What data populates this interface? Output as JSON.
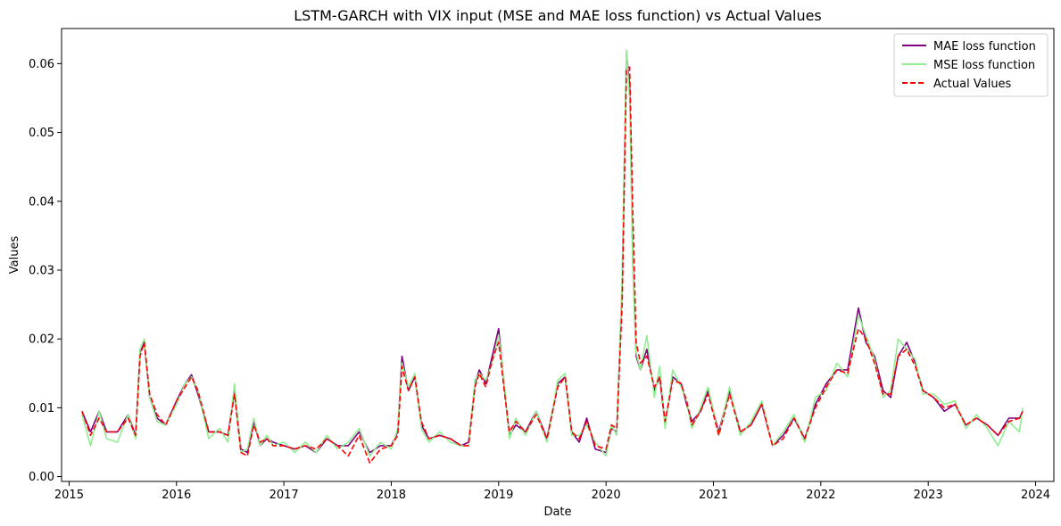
{
  "chart_data": {
    "type": "line",
    "title": "LSTM-GARCH with VIX input (MSE and MAE loss function) vs Actual Values",
    "xlabel": "Date",
    "ylabel": "Values",
    "xlim": [
      2014.93,
      2024.17
    ],
    "ylim": [
      -0.0007,
      0.0651
    ],
    "x_ticks": [
      2015,
      2016,
      2017,
      2018,
      2019,
      2020,
      2021,
      2022,
      2023,
      2024
    ],
    "x_tick_labels": [
      "2015",
      "2016",
      "2017",
      "2018",
      "2019",
      "2020",
      "2021",
      "2022",
      "2023",
      "2024"
    ],
    "y_ticks": [
      0.0,
      0.01,
      0.02,
      0.03,
      0.04,
      0.05,
      0.06
    ],
    "y_tick_labels": [
      "0.00",
      "0.01",
      "0.02",
      "0.03",
      "0.04",
      "0.05",
      "0.06"
    ],
    "grid": false,
    "legend_position": "top-right",
    "series": [
      {
        "name": "MAE loss function",
        "color": "#800080",
        "style": "solid",
        "x": [
          2015.12,
          2015.2,
          2015.28,
          2015.35,
          2015.45,
          2015.55,
          2015.62,
          2015.66,
          2015.7,
          2015.75,
          2015.82,
          2015.9,
          2016.0,
          2016.08,
          2016.14,
          2016.2,
          2016.3,
          2016.4,
          2016.48,
          2016.54,
          2016.6,
          2016.66,
          2016.72,
          2016.78,
          2016.84,
          2016.9,
          2017.0,
          2017.1,
          2017.2,
          2017.3,
          2017.4,
          2017.5,
          2017.6,
          2017.7,
          2017.8,
          2017.9,
          2018.0,
          2018.06,
          2018.1,
          2018.16,
          2018.22,
          2018.28,
          2018.35,
          2018.45,
          2018.55,
          2018.65,
          2018.72,
          2018.78,
          2018.82,
          2018.88,
          2018.94,
          2019.0,
          2019.06,
          2019.1,
          2019.16,
          2019.25,
          2019.35,
          2019.45,
          2019.55,
          2019.62,
          2019.68,
          2019.75,
          2019.82,
          2019.9,
          2020.0,
          2020.05,
          2020.1,
          2020.15,
          2020.19,
          2020.22,
          2020.25,
          2020.28,
          2020.32,
          2020.38,
          2020.45,
          2020.5,
          2020.55,
          2020.62,
          2020.7,
          2020.75,
          2020.8,
          2020.88,
          2020.95,
          2021.05,
          2021.15,
          2021.25,
          2021.35,
          2021.45,
          2021.55,
          2021.65,
          2021.75,
          2021.85,
          2021.95,
          2022.05,
          2022.15,
          2022.25,
          2022.35,
          2022.42,
          2022.5,
          2022.58,
          2022.65,
          2022.72,
          2022.8,
          2022.88,
          2022.95,
          2023.05,
          2023.15,
          2023.25,
          2023.35,
          2023.45,
          2023.55,
          2023.65,
          2023.75,
          2023.85,
          2023.88
        ],
        "y": [
          0.0095,
          0.0065,
          0.0095,
          0.0065,
          0.0065,
          0.009,
          0.006,
          0.018,
          0.0195,
          0.0115,
          0.0085,
          0.0075,
          0.011,
          0.0135,
          0.0148,
          0.012,
          0.0065,
          0.0065,
          0.006,
          0.0125,
          0.004,
          0.0035,
          0.008,
          0.0045,
          0.0055,
          0.005,
          0.0045,
          0.004,
          0.0045,
          0.0035,
          0.0055,
          0.0045,
          0.0045,
          0.0065,
          0.0035,
          0.0045,
          0.0045,
          0.0065,
          0.0175,
          0.0125,
          0.0145,
          0.0075,
          0.0055,
          0.006,
          0.0055,
          0.0045,
          0.005,
          0.0135,
          0.0155,
          0.0135,
          0.0175,
          0.0215,
          0.012,
          0.006,
          0.0075,
          0.0065,
          0.0095,
          0.0055,
          0.0135,
          0.0145,
          0.0065,
          0.005,
          0.0085,
          0.004,
          0.0035,
          0.007,
          0.0065,
          0.028,
          0.0615,
          0.057,
          0.031,
          0.0175,
          0.0155,
          0.0185,
          0.0125,
          0.0145,
          0.0075,
          0.0145,
          0.0135,
          0.0105,
          0.008,
          0.0095,
          0.0125,
          0.0065,
          0.0125,
          0.0065,
          0.0075,
          0.0105,
          0.0045,
          0.006,
          0.0085,
          0.0055,
          0.0105,
          0.0135,
          0.0155,
          0.0155,
          0.0245,
          0.0195,
          0.0175,
          0.0125,
          0.0115,
          0.0175,
          0.0195,
          0.0165,
          0.0125,
          0.0115,
          0.0095,
          0.0105,
          0.0075,
          0.0085,
          0.0075,
          0.006,
          0.0085,
          0.0085,
          0.0095
        ]
      },
      {
        "name": "MSE loss function",
        "color": "#90ee90",
        "style": "solid",
        "x": [
          2015.12,
          2015.2,
          2015.28,
          2015.35,
          2015.45,
          2015.55,
          2015.62,
          2015.66,
          2015.7,
          2015.75,
          2015.82,
          2015.9,
          2016.0,
          2016.08,
          2016.14,
          2016.2,
          2016.3,
          2016.4,
          2016.48,
          2016.54,
          2016.6,
          2016.66,
          2016.72,
          2016.78,
          2016.84,
          2016.9,
          2017.0,
          2017.1,
          2017.2,
          2017.3,
          2017.4,
          2017.5,
          2017.6,
          2017.7,
          2017.8,
          2017.9,
          2018.0,
          2018.06,
          2018.1,
          2018.16,
          2018.22,
          2018.28,
          2018.35,
          2018.45,
          2018.55,
          2018.65,
          2018.72,
          2018.78,
          2018.82,
          2018.88,
          2018.94,
          2019.0,
          2019.06,
          2019.1,
          2019.16,
          2019.25,
          2019.35,
          2019.45,
          2019.55,
          2019.62,
          2019.68,
          2019.75,
          2019.82,
          2019.9,
          2020.0,
          2020.05,
          2020.1,
          2020.15,
          2020.19,
          2020.22,
          2020.25,
          2020.28,
          2020.32,
          2020.38,
          2020.45,
          2020.5,
          2020.55,
          2020.62,
          2020.7,
          2020.75,
          2020.8,
          2020.88,
          2020.95,
          2021.05,
          2021.15,
          2021.25,
          2021.35,
          2021.45,
          2021.55,
          2021.65,
          2021.75,
          2021.85,
          2021.95,
          2022.05,
          2022.15,
          2022.25,
          2022.35,
          2022.42,
          2022.5,
          2022.58,
          2022.65,
          2022.72,
          2022.8,
          2022.88,
          2022.95,
          2023.05,
          2023.15,
          2023.25,
          2023.35,
          2023.45,
          2023.55,
          2023.65,
          2023.75,
          2023.85,
          2023.88
        ],
        "y": [
          0.009,
          0.0045,
          0.0095,
          0.0055,
          0.005,
          0.009,
          0.0055,
          0.0185,
          0.02,
          0.0115,
          0.008,
          0.0075,
          0.0105,
          0.0135,
          0.0145,
          0.0125,
          0.0055,
          0.007,
          0.005,
          0.0135,
          0.0035,
          0.004,
          0.0085,
          0.0045,
          0.006,
          0.0045,
          0.005,
          0.0035,
          0.005,
          0.0035,
          0.006,
          0.004,
          0.005,
          0.007,
          0.003,
          0.005,
          0.004,
          0.007,
          0.0165,
          0.013,
          0.015,
          0.007,
          0.005,
          0.0065,
          0.005,
          0.0045,
          0.0045,
          0.014,
          0.015,
          0.014,
          0.0165,
          0.0205,
          0.0125,
          0.0055,
          0.0085,
          0.006,
          0.0095,
          0.005,
          0.014,
          0.015,
          0.006,
          0.006,
          0.0075,
          0.005,
          0.003,
          0.0075,
          0.006,
          0.029,
          0.062,
          0.055,
          0.03,
          0.018,
          0.0155,
          0.0205,
          0.0115,
          0.016,
          0.007,
          0.0155,
          0.013,
          0.011,
          0.007,
          0.01,
          0.013,
          0.006,
          0.013,
          0.006,
          0.008,
          0.011,
          0.0045,
          0.0065,
          0.009,
          0.005,
          0.0115,
          0.0125,
          0.0165,
          0.0145,
          0.0235,
          0.0205,
          0.017,
          0.0115,
          0.0125,
          0.02,
          0.0185,
          0.017,
          0.012,
          0.012,
          0.0105,
          0.011,
          0.007,
          0.009,
          0.007,
          0.0045,
          0.008,
          0.0065,
          0.01
        ]
      },
      {
        "name": "Actual Values",
        "color": "#ff0000",
        "style": "dashed",
        "x": [
          2015.12,
          2015.2,
          2015.28,
          2015.35,
          2015.45,
          2015.55,
          2015.62,
          2015.66,
          2015.7,
          2015.75,
          2015.82,
          2015.9,
          2016.0,
          2016.08,
          2016.14,
          2016.2,
          2016.3,
          2016.4,
          2016.48,
          2016.54,
          2016.6,
          2016.66,
          2016.72,
          2016.78,
          2016.84,
          2016.9,
          2017.0,
          2017.1,
          2017.2,
          2017.3,
          2017.4,
          2017.5,
          2017.6,
          2017.7,
          2017.8,
          2017.9,
          2018.0,
          2018.06,
          2018.1,
          2018.16,
          2018.22,
          2018.28,
          2018.35,
          2018.45,
          2018.55,
          2018.65,
          2018.72,
          2018.78,
          2018.82,
          2018.88,
          2018.94,
          2019.0,
          2019.06,
          2019.1,
          2019.16,
          2019.25,
          2019.35,
          2019.45,
          2019.55,
          2019.62,
          2019.68,
          2019.75,
          2019.82,
          2019.9,
          2020.0,
          2020.05,
          2020.1,
          2020.15,
          2020.19,
          2020.22,
          2020.25,
          2020.28,
          2020.32,
          2020.38,
          2020.45,
          2020.5,
          2020.55,
          2020.62,
          2020.7,
          2020.75,
          2020.8,
          2020.88,
          2020.95,
          2021.05,
          2021.15,
          2021.25,
          2021.35,
          2021.45,
          2021.55,
          2021.65,
          2021.75,
          2021.85,
          2021.95,
          2022.05,
          2022.15,
          2022.25,
          2022.35,
          2022.42,
          2022.5,
          2022.58,
          2022.65,
          2022.72,
          2022.8,
          2022.88,
          2022.95,
          2023.05,
          2023.15,
          2023.25,
          2023.35,
          2023.45,
          2023.55,
          2023.65,
          2023.75,
          2023.85,
          2023.88
        ],
        "y": [
          0.0095,
          0.006,
          0.0085,
          0.0065,
          0.0065,
          0.0085,
          0.006,
          0.0175,
          0.0195,
          0.012,
          0.009,
          0.0075,
          0.011,
          0.013,
          0.0145,
          0.0125,
          0.0065,
          0.0065,
          0.006,
          0.012,
          0.0035,
          0.003,
          0.0075,
          0.005,
          0.0055,
          0.0045,
          0.0045,
          0.004,
          0.0045,
          0.004,
          0.0055,
          0.0045,
          0.003,
          0.006,
          0.002,
          0.004,
          0.0045,
          0.006,
          0.016,
          0.0125,
          0.0145,
          0.008,
          0.0055,
          0.006,
          0.0055,
          0.0045,
          0.0045,
          0.013,
          0.015,
          0.013,
          0.017,
          0.0195,
          0.0115,
          0.0065,
          0.008,
          0.0065,
          0.009,
          0.0055,
          0.013,
          0.0145,
          0.0065,
          0.0055,
          0.008,
          0.0045,
          0.004,
          0.0075,
          0.007,
          0.025,
          0.059,
          0.0595,
          0.038,
          0.0195,
          0.0165,
          0.0175,
          0.013,
          0.0145,
          0.008,
          0.014,
          0.0135,
          0.011,
          0.0075,
          0.0095,
          0.012,
          0.006,
          0.012,
          0.0065,
          0.0075,
          0.0105,
          0.0045,
          0.0055,
          0.0085,
          0.0055,
          0.01,
          0.013,
          0.0155,
          0.015,
          0.0215,
          0.02,
          0.0165,
          0.012,
          0.012,
          0.0175,
          0.0185,
          0.016,
          0.0125,
          0.0115,
          0.01,
          0.0105,
          0.0075,
          0.0085,
          0.0075,
          0.006,
          0.008,
          0.0085,
          0.0095
        ]
      }
    ]
  }
}
